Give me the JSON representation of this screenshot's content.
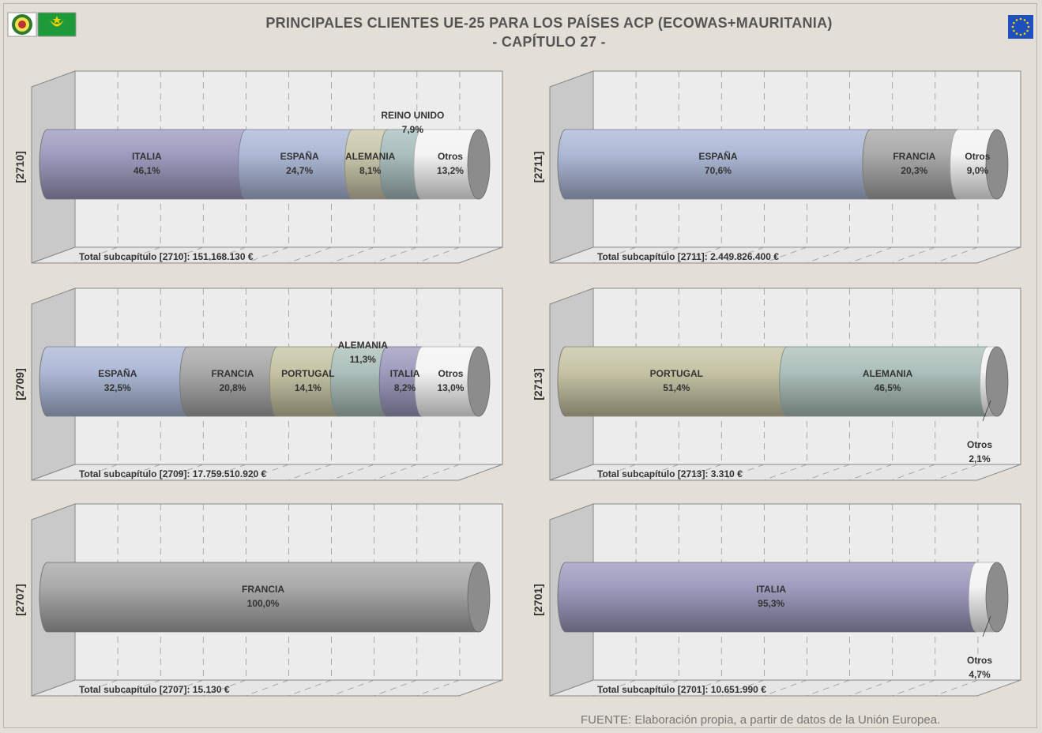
{
  "header": {
    "title_line1": "PRINCIPALES CLIENTES UE-25 PARA LOS PAÍSES ACP (ECOWAS+MAURITANIA)",
    "title_line2": "- CAPÍTULO 27 -"
  },
  "footer": {
    "source": "FUENTE: Elaboración propia, a partir de datos de la Unión Europea."
  },
  "colors": {
    "ITALIA": "#9a98bc",
    "ESPAÑA": "#a9b5d4",
    "ALEMANIA": "#a9bdb7",
    "REINO UNIDO": "#a6bcbb",
    "FRANCIA": "#a5a5a5",
    "PORTUGAL": "#c4c1a1",
    "Otros": "#f3f3f3",
    "ALEMANIA_2710": "#c8c5a9"
  },
  "chart_data": [
    {
      "type": "bar",
      "stacked": true,
      "orientation": "horizontal",
      "category": "[2710]",
      "total_label": "Total subcapítulo [2710]: 151.168.130 €",
      "series": [
        {
          "name": "ITALIA",
          "value": 46.1,
          "label": "46,1%",
          "color": "#9a98bc"
        },
        {
          "name": "ESPAÑA",
          "value": 24.7,
          "label": "24,7%",
          "color": "#a9b5d4"
        },
        {
          "name": "ALEMANIA",
          "value": 8.1,
          "label": "8,1%",
          "color": "#c8c5a9"
        },
        {
          "name": "REINO UNIDO",
          "value": 7.9,
          "label": "7,9%",
          "color": "#a6bcbb"
        },
        {
          "name": "Otros",
          "value": 13.2,
          "label": "13,2%",
          "color": "#f3f3f3"
        }
      ]
    },
    {
      "type": "bar",
      "stacked": true,
      "orientation": "horizontal",
      "category": "[2711]",
      "total_label": "Total subcapítulo [2711]: 2.449.826.400 €",
      "series": [
        {
          "name": "ESPAÑA",
          "value": 70.6,
          "label": "70,6%",
          "color": "#a9b5d4"
        },
        {
          "name": "FRANCIA",
          "value": 20.3,
          "label": "20,3%",
          "color": "#a5a5a5"
        },
        {
          "name": "Otros",
          "value": 9.0,
          "label": "9,0%",
          "color": "#f3f3f3"
        }
      ]
    },
    {
      "type": "bar",
      "stacked": true,
      "orientation": "horizontal",
      "category": "[2709]",
      "total_label": "Total subcapítulo [2709]: 17.759.510.920 €",
      "series": [
        {
          "name": "ESPAÑA",
          "value": 32.5,
          "label": "32,5%",
          "color": "#a9b5d4"
        },
        {
          "name": "FRANCIA",
          "value": 20.8,
          "label": "20,8%",
          "color": "#a5a5a5"
        },
        {
          "name": "PORTUGAL",
          "value": 14.1,
          "label": "14,1%",
          "color": "#c4c1a1"
        },
        {
          "name": "ALEMANIA",
          "value": 11.3,
          "label": "11,3%",
          "color": "#a9bdb7"
        },
        {
          "name": "ITALIA",
          "value": 8.2,
          "label": "8,2%",
          "color": "#9a98bc"
        },
        {
          "name": "Otros",
          "value": 13.0,
          "label": "13,0%",
          "color": "#f3f3f3"
        }
      ]
    },
    {
      "type": "bar",
      "stacked": true,
      "orientation": "horizontal",
      "category": "[2713]",
      "total_label": "Total subcapítulo [2713]: 3.310 €",
      "series": [
        {
          "name": "PORTUGAL",
          "value": 51.4,
          "label": "51,4%",
          "color": "#c4c1a1"
        },
        {
          "name": "ALEMANIA",
          "value": 46.5,
          "label": "46,5%",
          "color": "#a9bdb7"
        },
        {
          "name": "Otros",
          "value": 2.1,
          "label": "2,1%",
          "color": "#f3f3f3"
        }
      ]
    },
    {
      "type": "bar",
      "stacked": true,
      "orientation": "horizontal",
      "category": "[2707]",
      "total_label": "Total subcapítulo [2707]: 15.130 €",
      "series": [
        {
          "name": "FRANCIA",
          "value": 100.0,
          "label": "100,0%",
          "color": "#a5a5a5"
        }
      ]
    },
    {
      "type": "bar",
      "stacked": true,
      "orientation": "horizontal",
      "category": "[2701]",
      "total_label": "Total subcapítulo [2701]: 10.651.990 €",
      "series": [
        {
          "name": "ITALIA",
          "value": 95.3,
          "label": "95,3%",
          "color": "#9a98bc"
        },
        {
          "name": "Otros",
          "value": 4.7,
          "label": "4,7%",
          "color": "#f3f3f3"
        }
      ]
    }
  ]
}
